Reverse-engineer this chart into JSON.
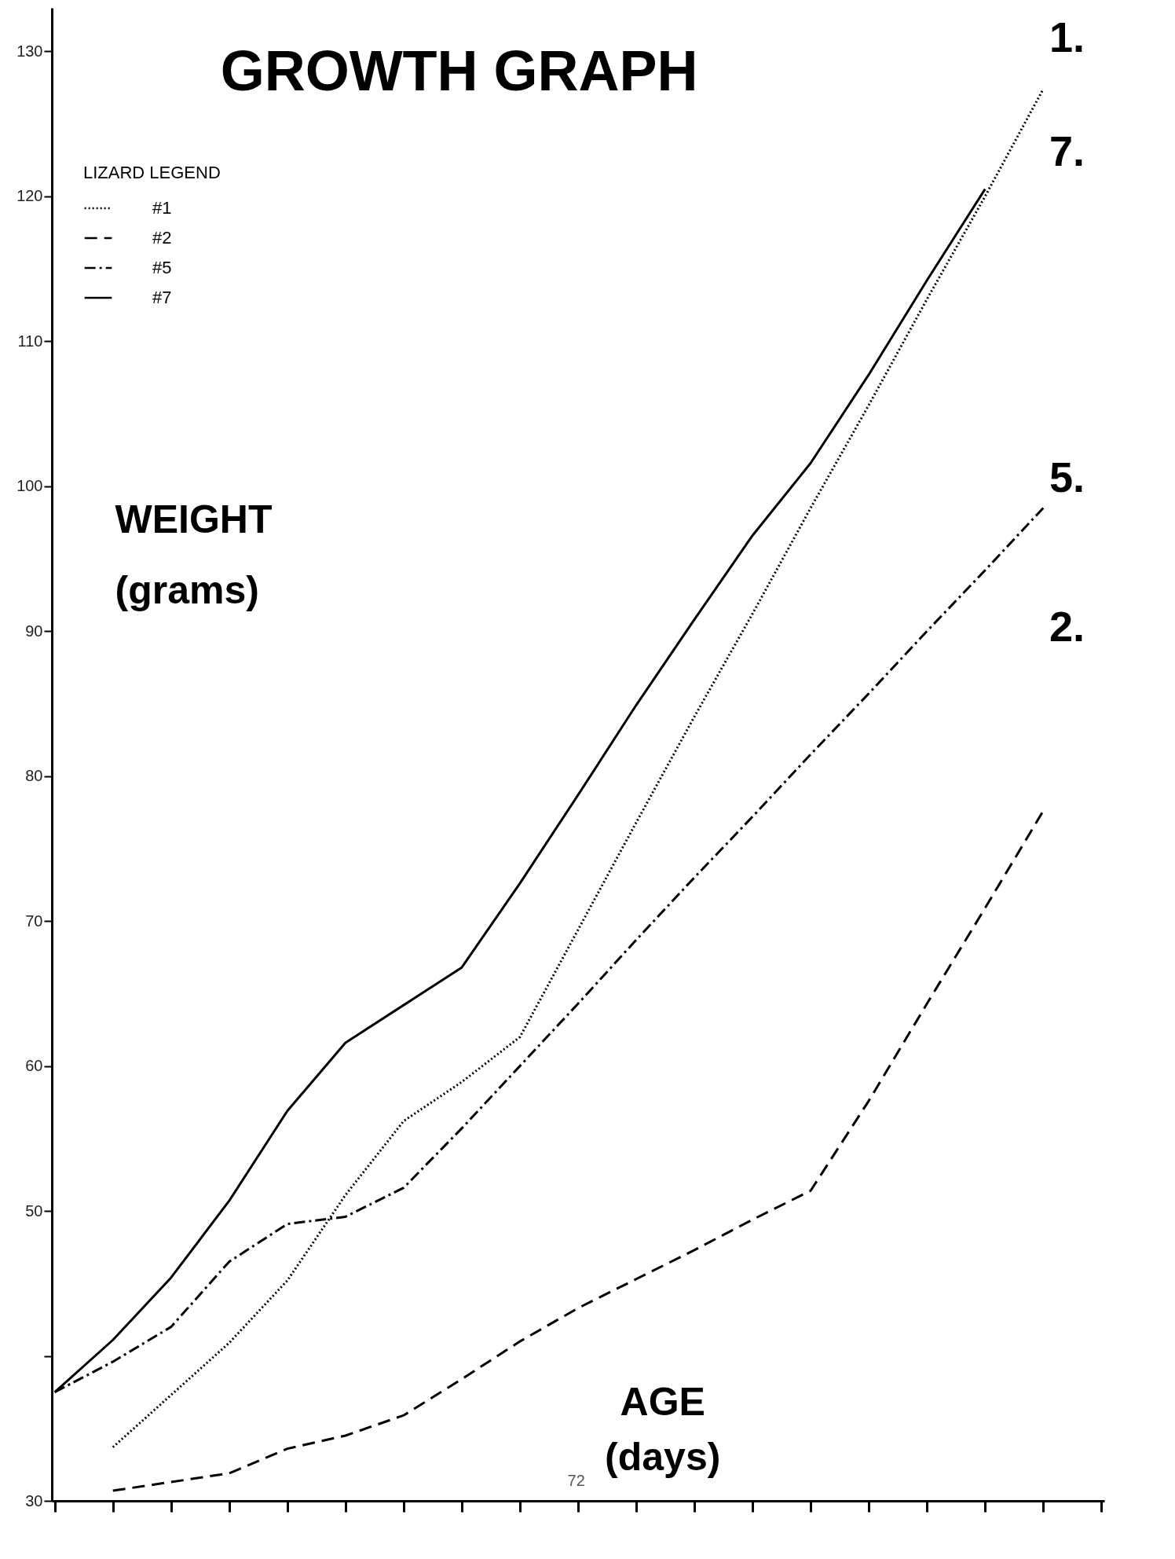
{
  "chart_data": {
    "type": "line",
    "title": "GROWTH GRAPH",
    "xlabel": "AGE (days)",
    "ylabel": "WEIGHT (grams)",
    "legend_title": "LIZARD LEGEND",
    "legend": "top left",
    "grid": false,
    "tick_labels": "y",
    "categories": [
      null,
      null,
      null,
      null,
      null,
      null,
      null,
      null,
      null,
      null,
      null,
      null,
      null,
      null,
      null,
      null,
      null,
      null,
      null
    ],
    "ylim": [
      30,
      133
    ],
    "yticks": [
      30,
      {
        "value": 40,
        "label": null
      },
      50,
      60,
      70,
      80,
      90,
      100,
      110,
      120,
      130
    ],
    "series": [
      {
        "name": "#1",
        "color": "#000000",
        "line_style": "dotted",
        "values": [
          null,
          33.7,
          37.3,
          40.9,
          45.2,
          51.1,
          56.2,
          58.9,
          62.0,
          69.4,
          76.8,
          84.1,
          91.2,
          98.5,
          105.6,
          112.9,
          120.0,
          127.4,
          null
        ]
      },
      {
        "name": "#2",
        "color": "#000000",
        "line_style": "dashed",
        "values": [
          null,
          30.7,
          31.3,
          31.9,
          33.6,
          34.5,
          35.9,
          38.4,
          41.0,
          43.3,
          45.3,
          47.3,
          49.4,
          51.4,
          57.6,
          64.3,
          70.9,
          77.6,
          null
        ]
      },
      {
        "name": "#5",
        "color": "#000000",
        "line_style": "dashdot",
        "values": [
          37.5,
          39.6,
          42.0,
          46.5,
          49.1,
          49.6,
          51.6,
          55.7,
          60.0,
          64.3,
          68.7,
          73.0,
          77.2,
          81.5,
          85.7,
          90.0,
          94.2,
          98.5,
          null
        ]
      },
      {
        "name": "#7",
        "color": "#000000",
        "line_style": "solid",
        "values": [
          37.5,
          41.1,
          45.4,
          50.7,
          56.9,
          61.6,
          64.2,
          66.8,
          72.6,
          78.7,
          84.9,
          90.8,
          96.6,
          101.6,
          107.7,
          114.2,
          120.5,
          null,
          null
        ]
      }
    ],
    "annotations": [
      "1.",
      "7.",
      "5.",
      "2.",
      "72"
    ]
  }
}
